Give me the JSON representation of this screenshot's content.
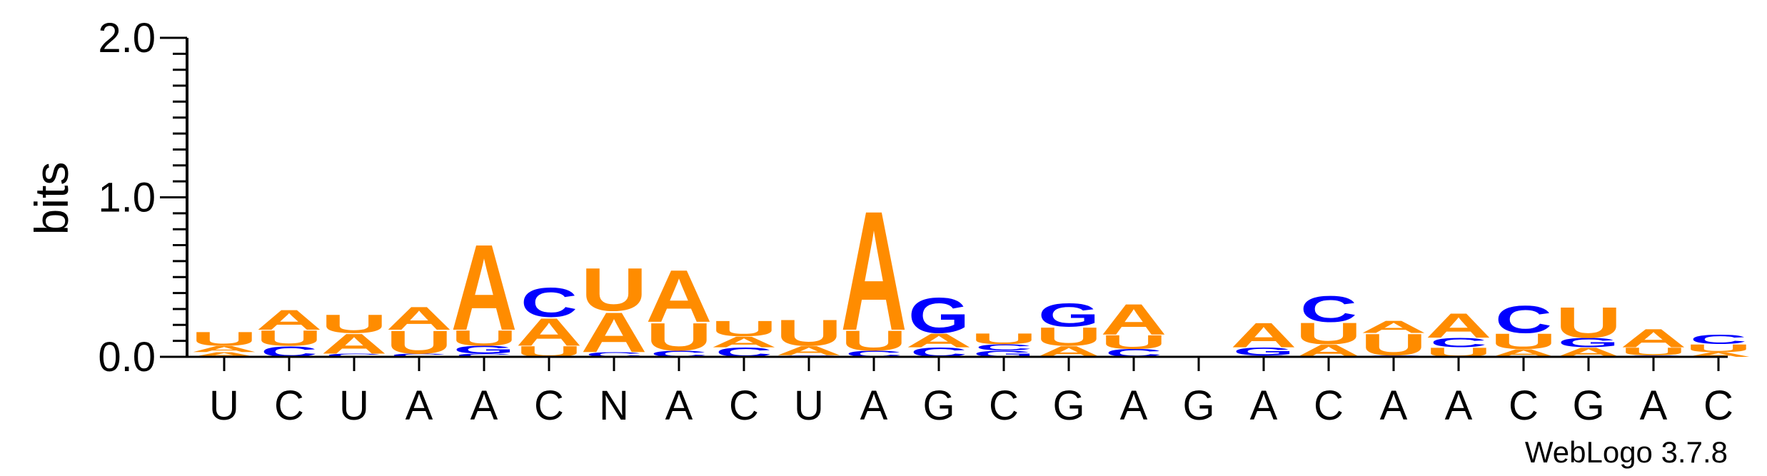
{
  "chart_data": {
    "type": "sequence-logo",
    "ylabel": "bits",
    "ylim": [
      0,
      2.0
    ],
    "yticks": [
      {
        "value": 0.0,
        "label": "0.0"
      },
      {
        "value": 1.0,
        "label": "1.0"
      },
      {
        "value": 2.0,
        "label": "2.0"
      }
    ],
    "categories": [
      "U",
      "C",
      "U",
      "A",
      "A",
      "C",
      "N",
      "A",
      "C",
      "U",
      "A",
      "G",
      "C",
      "G",
      "A",
      "G",
      "A",
      "C",
      "A",
      "A",
      "C",
      "G",
      "A",
      "C"
    ],
    "colors": {
      "A": "#ff8c00",
      "U": "#ff8c00",
      "C": "#0000ff",
      "G": "#0000ff"
    },
    "columns": [
      {
        "stack": [
          {
            "letter": "A",
            "bits": 0.03
          },
          {
            "letter": "A",
            "bits": 0.04
          },
          {
            "letter": "U",
            "bits": 0.09
          }
        ]
      },
      {
        "stack": [
          {
            "letter": "C",
            "bits": 0.07
          },
          {
            "letter": "U",
            "bits": 0.1
          },
          {
            "letter": "A",
            "bits": 0.13
          }
        ]
      },
      {
        "stack": [
          {
            "letter": "C",
            "bits": 0.02
          },
          {
            "letter": "A",
            "bits": 0.13
          },
          {
            "letter": "U",
            "bits": 0.12
          }
        ]
      },
      {
        "stack": [
          {
            "letter": "C",
            "bits": 0.02
          },
          {
            "letter": "U",
            "bits": 0.15
          },
          {
            "letter": "A",
            "bits": 0.15
          }
        ]
      },
      {
        "stack": [
          {
            "letter": "C",
            "bits": 0.02
          },
          {
            "letter": "G",
            "bits": 0.05
          },
          {
            "letter": "U",
            "bits": 0.1
          },
          {
            "letter": "A",
            "bits": 0.56
          }
        ]
      },
      {
        "stack": [
          {
            "letter": "U",
            "bits": 0.07
          },
          {
            "letter": "A",
            "bits": 0.18
          },
          {
            "letter": "C",
            "bits": 0.19
          }
        ]
      },
      {
        "stack": [
          {
            "letter": "C",
            "bits": 0.03
          },
          {
            "letter": "A",
            "bits": 0.26
          },
          {
            "letter": "U",
            "bits": 0.28
          }
        ]
      },
      {
        "stack": [
          {
            "letter": "C",
            "bits": 0.04
          },
          {
            "letter": "U",
            "bits": 0.18
          },
          {
            "letter": "A",
            "bits": 0.34
          }
        ]
      },
      {
        "stack": [
          {
            "letter": "C",
            "bits": 0.06
          },
          {
            "letter": "A",
            "bits": 0.07
          },
          {
            "letter": "U",
            "bits": 0.1
          }
        ]
      },
      {
        "stack": [
          {
            "letter": "C",
            "bits": 0.01
          },
          {
            "letter": "A",
            "bits": 0.06
          },
          {
            "letter": "U",
            "bits": 0.17
          }
        ]
      },
      {
        "stack": [
          {
            "letter": "C",
            "bits": 0.04
          },
          {
            "letter": "U",
            "bits": 0.13
          },
          {
            "letter": "A",
            "bits": 0.78
          }
        ]
      },
      {
        "stack": [
          {
            "letter": "C",
            "bits": 0.06
          },
          {
            "letter": "A",
            "bits": 0.09
          },
          {
            "letter": "G",
            "bits": 0.23
          }
        ]
      },
      {
        "stack": [
          {
            "letter": "G",
            "bits": 0.04
          },
          {
            "letter": "C",
            "bits": 0.04
          },
          {
            "letter": "U",
            "bits": 0.07
          }
        ]
      },
      {
        "stack": [
          {
            "letter": "A",
            "bits": 0.07
          },
          {
            "letter": "U",
            "bits": 0.12
          },
          {
            "letter": "G",
            "bits": 0.15
          }
        ]
      },
      {
        "stack": [
          {
            "letter": "C",
            "bits": 0.05
          },
          {
            "letter": "U",
            "bits": 0.09
          },
          {
            "letter": "A",
            "bits": 0.2
          }
        ]
      },
      {
        "stack": []
      },
      {
        "stack": [
          {
            "letter": "C",
            "bits": 0.01
          },
          {
            "letter": "G",
            "bits": 0.05
          },
          {
            "letter": "A",
            "bits": 0.16
          }
        ]
      },
      {
        "stack": [
          {
            "letter": "A",
            "bits": 0.08
          },
          {
            "letter": "U",
            "bits": 0.14
          },
          {
            "letter": "C",
            "bits": 0.17
          }
        ]
      },
      {
        "stack": [
          {
            "letter": "C",
            "bits": 0.01
          },
          {
            "letter": "U",
            "bits": 0.14
          },
          {
            "letter": "A",
            "bits": 0.08
          }
        ]
      },
      {
        "stack": [
          {
            "letter": "U",
            "bits": 0.06
          },
          {
            "letter": "C",
            "bits": 0.06
          },
          {
            "letter": "A",
            "bits": 0.16
          }
        ]
      },
      {
        "stack": [
          {
            "letter": "A",
            "bits": 0.05
          },
          {
            "letter": "U",
            "bits": 0.1
          },
          {
            "letter": "C",
            "bits": 0.18
          }
        ]
      },
      {
        "stack": [
          {
            "letter": "A",
            "bits": 0.06
          },
          {
            "letter": "G",
            "bits": 0.06
          },
          {
            "letter": "U",
            "bits": 0.2
          }
        ]
      },
      {
        "stack": [
          {
            "letter": "C",
            "bits": 0.01
          },
          {
            "letter": "U",
            "bits": 0.05
          },
          {
            "letter": "A",
            "bits": 0.12
          }
        ]
      },
      {
        "stack": [
          {
            "letter": "A",
            "bits": 0.03
          },
          {
            "letter": "U",
            "bits": 0.05
          },
          {
            "letter": "C",
            "bits": 0.06
          }
        ]
      }
    ]
  },
  "credit": "WebLogo 3.7.8"
}
